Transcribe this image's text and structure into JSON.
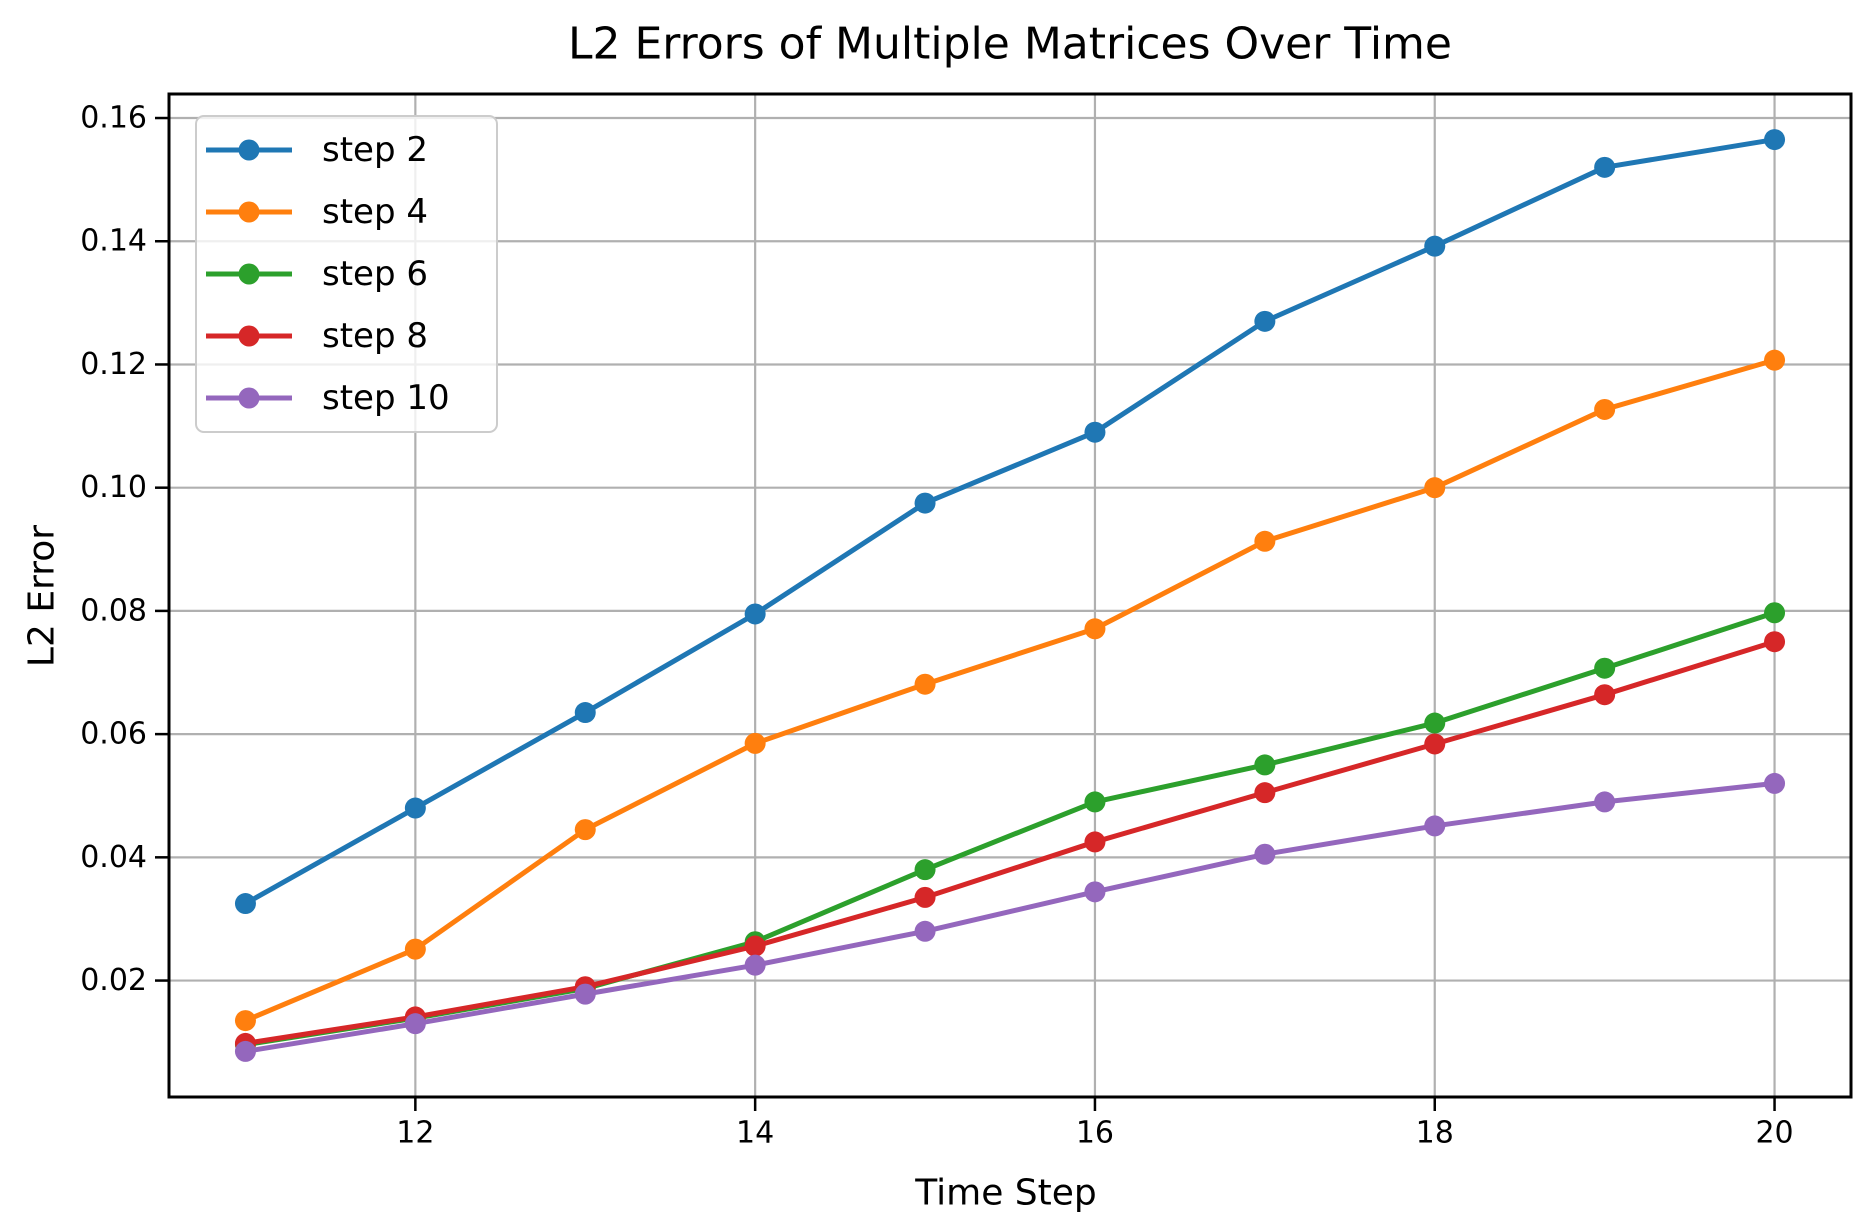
{
  "figure": {
    "background": "#ffffff",
    "spine_color": "#000000",
    "grid_color": "#b0b0b0",
    "legend_border_color": "#cccccc",
    "legend_fill": "rgba(255,255,255,0.8)"
  },
  "chart_data": {
    "type": "line",
    "title": "L2 Errors of Multiple Matrices Over Time",
    "xlabel": "Time Step",
    "ylabel": "L2 Error",
    "x": [
      11,
      12,
      13,
      14,
      15,
      16,
      17,
      18,
      19,
      20
    ],
    "series": [
      {
        "name": "step 2",
        "color": "#1f77b4",
        "values": [
          0.0325,
          0.048,
          0.0635,
          0.0795,
          0.0975,
          0.109,
          0.127,
          0.1392,
          0.152,
          0.1565
        ]
      },
      {
        "name": "step 4",
        "color": "#ff7f0e",
        "values": [
          0.0135,
          0.0251,
          0.0445,
          0.0585,
          0.0681,
          0.0771,
          0.0913,
          0.1,
          0.1127,
          0.1207
        ]
      },
      {
        "name": "step 6",
        "color": "#2ca02c",
        "values": [
          0.0096,
          0.0139,
          0.0187,
          0.0263,
          0.038,
          0.049,
          0.055,
          0.0618,
          0.0707,
          0.0797
        ]
      },
      {
        "name": "step 8",
        "color": "#d62728",
        "values": [
          0.0098,
          0.0141,
          0.019,
          0.0256,
          0.0335,
          0.0425,
          0.0505,
          0.0584,
          0.0664,
          0.075
        ]
      },
      {
        "name": "step 10",
        "color": "#9467bd",
        "values": [
          0.0085,
          0.013,
          0.0178,
          0.0225,
          0.028,
          0.0344,
          0.0405,
          0.0451,
          0.049,
          0.052
        ]
      }
    ],
    "xlim": [
      10.55,
      20.45
    ],
    "ylim": [
      0.0011,
      0.1639
    ],
    "xticks": {
      "values": [
        12,
        14,
        16,
        18,
        20
      ],
      "labels": [
        "12",
        "14",
        "16",
        "18",
        "20"
      ]
    },
    "yticks": {
      "values": [
        0.02,
        0.04,
        0.06,
        0.08,
        0.1,
        0.12,
        0.14,
        0.16
      ],
      "labels": [
        "0.02",
        "0.04",
        "0.06",
        "0.08",
        "0.10",
        "0.12",
        "0.14",
        "0.16"
      ]
    },
    "grid": true,
    "legend": {
      "position": "upper left",
      "labels": [
        "step 2",
        "step 4",
        "step 6",
        "step 8",
        "step 10"
      ]
    }
  }
}
